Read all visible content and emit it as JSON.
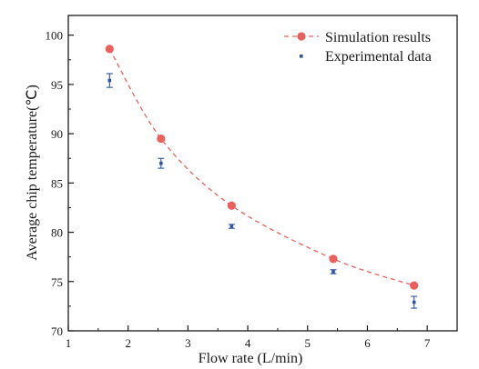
{
  "chart_data": {
    "type": "scatter",
    "title": "",
    "xlabel": "Flow rate (L/min)",
    "ylabel": "Average chip temperature(℃)",
    "xlim": [
      1,
      7.5
    ],
    "ylim": [
      70,
      102
    ],
    "x_ticks": [
      "1",
      "2",
      "3",
      "4",
      "5",
      "6",
      "7"
    ],
    "y_ticks": [
      "70",
      "75",
      "80",
      "85",
      "90",
      "95",
      "100"
    ],
    "grid": false,
    "legend_position": "top-right",
    "series": [
      {
        "name": "Simulation results",
        "style": "dashed-line-circles",
        "color": "#e8615e",
        "x": [
          1.69,
          2.55,
          3.73,
          5.43,
          6.78
        ],
        "y": [
          98.6,
          89.5,
          82.7,
          77.3,
          74.6
        ]
      },
      {
        "name": "Experimental data",
        "style": "points-errorbars",
        "color": "#2f54a3",
        "x": [
          1.69,
          2.55,
          3.73,
          5.43,
          6.78
        ],
        "y": [
          95.4,
          87.0,
          80.6,
          76.0,
          72.9
        ],
        "err": [
          0.7,
          0.5,
          0.2,
          0.2,
          0.6
        ]
      }
    ]
  }
}
